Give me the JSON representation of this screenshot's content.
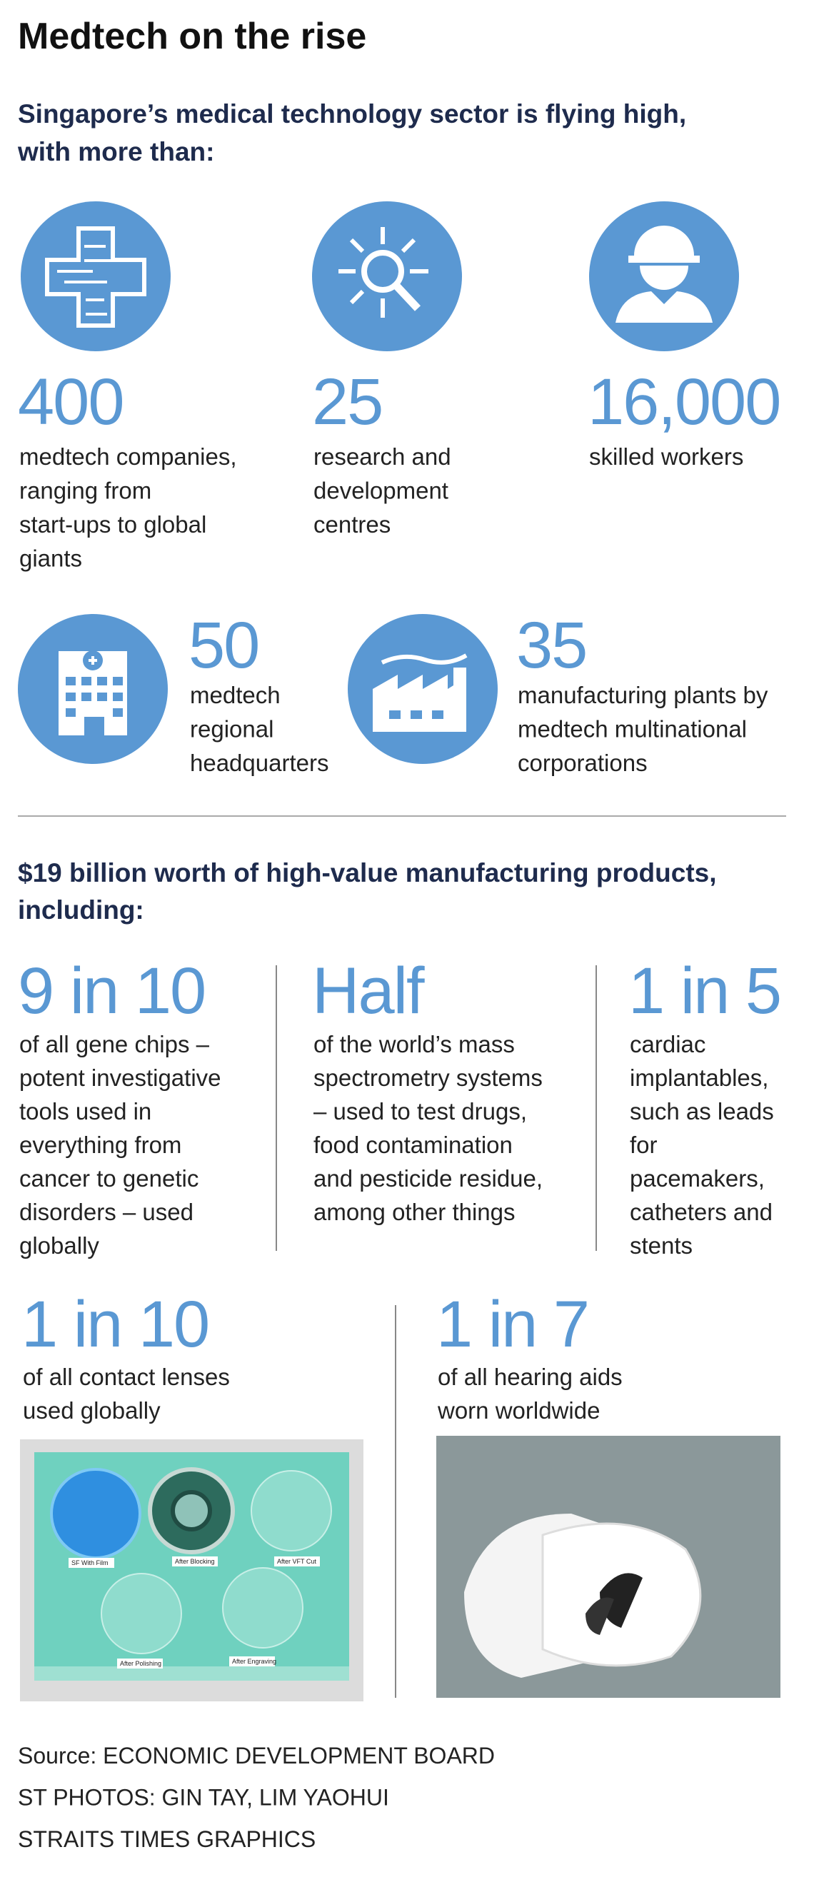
{
  "title": "Medtech on the rise",
  "subtitle": [
    "Singapore’s medical technology sector is flying high,",
    "with more than:"
  ],
  "stats": [
    {
      "number": "400",
      "description": [
        "medtech companies,",
        "ranging from",
        "start-ups to global",
        "giants"
      ]
    },
    {
      "number": "25",
      "description": [
        "research and",
        "development",
        "centres"
      ]
    },
    {
      "number": "16,000",
      "description": [
        "skilled workers"
      ]
    },
    {
      "number": "50",
      "description": [
        "medtech",
        "regional",
        "headquarters"
      ]
    },
    {
      "number": "35",
      "description": [
        "manufacturing plants by",
        "medtech multinational",
        "corporations"
      ]
    }
  ],
  "products": {
    "heading": [
      "$19 billion worth of high-value manufacturing products,",
      "including:"
    ],
    "items": [
      {
        "figure": "9 in 10",
        "description": [
          "of all gene chips –",
          "potent investigative",
          "tools used in",
          "everything from",
          "cancer to genetic",
          "disorders – used",
          "globally"
        ]
      },
      {
        "figure": "Half",
        "description": [
          "of the world’s mass",
          "spectrometry systems",
          "– used to test drugs,",
          "food contamination",
          "and pesticide residue,",
          "among other things"
        ]
      },
      {
        "figure": "1 in 5",
        "description": [
          "cardiac",
          "implantables,",
          "such as leads",
          "for",
          "pacemakers,",
          "catheters and",
          "stents"
        ]
      },
      {
        "figure": "1 in 10",
        "description": [
          "of all contact lenses",
          "used globally"
        ]
      },
      {
        "figure": "1 in 7",
        "description": [
          "of all hearing aids",
          "worn worldwide"
        ]
      }
    ]
  },
  "photos": {
    "lens_labels": [
      "SF With Film",
      "After Blocking",
      "After VFT Cut",
      "After Polishing",
      "After Engraving"
    ]
  },
  "credits": [
    "Source: ECONOMIC DEVELOPMENT BOARD",
    "ST PHOTOS: GIN TAY, LIM YAOHUI",
    "STRAITS TIMES GRAPHICS"
  ]
}
